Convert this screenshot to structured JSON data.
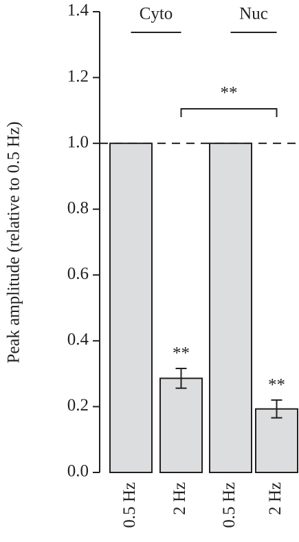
{
  "chart_data": {
    "type": "bar",
    "y_label": "Peak amplitude (relative to 0.5 Hz)",
    "categories": [
      "0.5 Hz",
      "2 Hz",
      "0.5 Hz",
      "2 Hz"
    ],
    "groups": [
      "Cyto",
      "Nuc"
    ],
    "values": [
      1.0,
      0.286,
      1.0,
      0.193
    ],
    "errors": [
      null,
      0.03,
      null,
      0.027
    ],
    "bar_annotations": [
      null,
      "**",
      null,
      "**"
    ],
    "bracket_label": "**",
    "color": "#dcdddf",
    "reference_line": 1.0,
    "ylim": [
      0,
      1.4
    ],
    "yticks": [
      {
        "value": 0,
        "label": "0.0"
      },
      {
        "value": 0.2,
        "label": "0.2"
      },
      {
        "value": 0.4,
        "label": "0.4"
      },
      {
        "value": 0.6,
        "label": "0.6"
      },
      {
        "value": 0.8,
        "label": "0.8"
      },
      {
        "value": 1.0,
        "label": "1.0"
      },
      {
        "value": 1.2,
        "label": "1.2"
      },
      {
        "value": 1.4,
        "label": "1.4"
      }
    ]
  }
}
